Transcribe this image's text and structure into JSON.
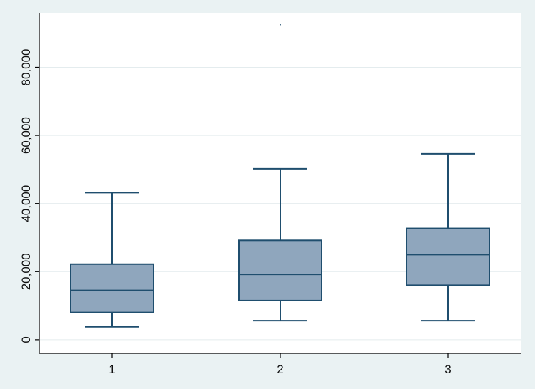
{
  "chart_data": {
    "type": "boxplot",
    "title": "",
    "xlabel": "",
    "ylabel": "",
    "categories": [
      "1",
      "2",
      "3"
    ],
    "ylim": [
      -4000,
      96000
    ],
    "yticks": [
      0,
      20000,
      40000,
      60000,
      80000
    ],
    "ytick_labels": [
      "0",
      "20,000",
      "40,000",
      "60,000",
      "80,000"
    ],
    "grid": true,
    "boxes": [
      {
        "label": "1",
        "whisker_low": 3800,
        "q1": 8000,
        "median": 14500,
        "q3": 22200,
        "whisker_high": 43200,
        "outliers": []
      },
      {
        "label": "2",
        "whisker_low": 5600,
        "q1": 11500,
        "median": 19200,
        "q3": 29200,
        "whisker_high": 50200,
        "outliers": [
          92500
        ]
      },
      {
        "label": "3",
        "whisker_low": 5600,
        "q1": 16000,
        "median": 25000,
        "q3": 32700,
        "whisker_high": 54600,
        "outliers": []
      }
    ],
    "colors": {
      "box_fill": "#8fa6bd",
      "box_stroke": "#1f4e6e",
      "background": "#eaf2f3",
      "plot_background": "#ffffff"
    }
  }
}
